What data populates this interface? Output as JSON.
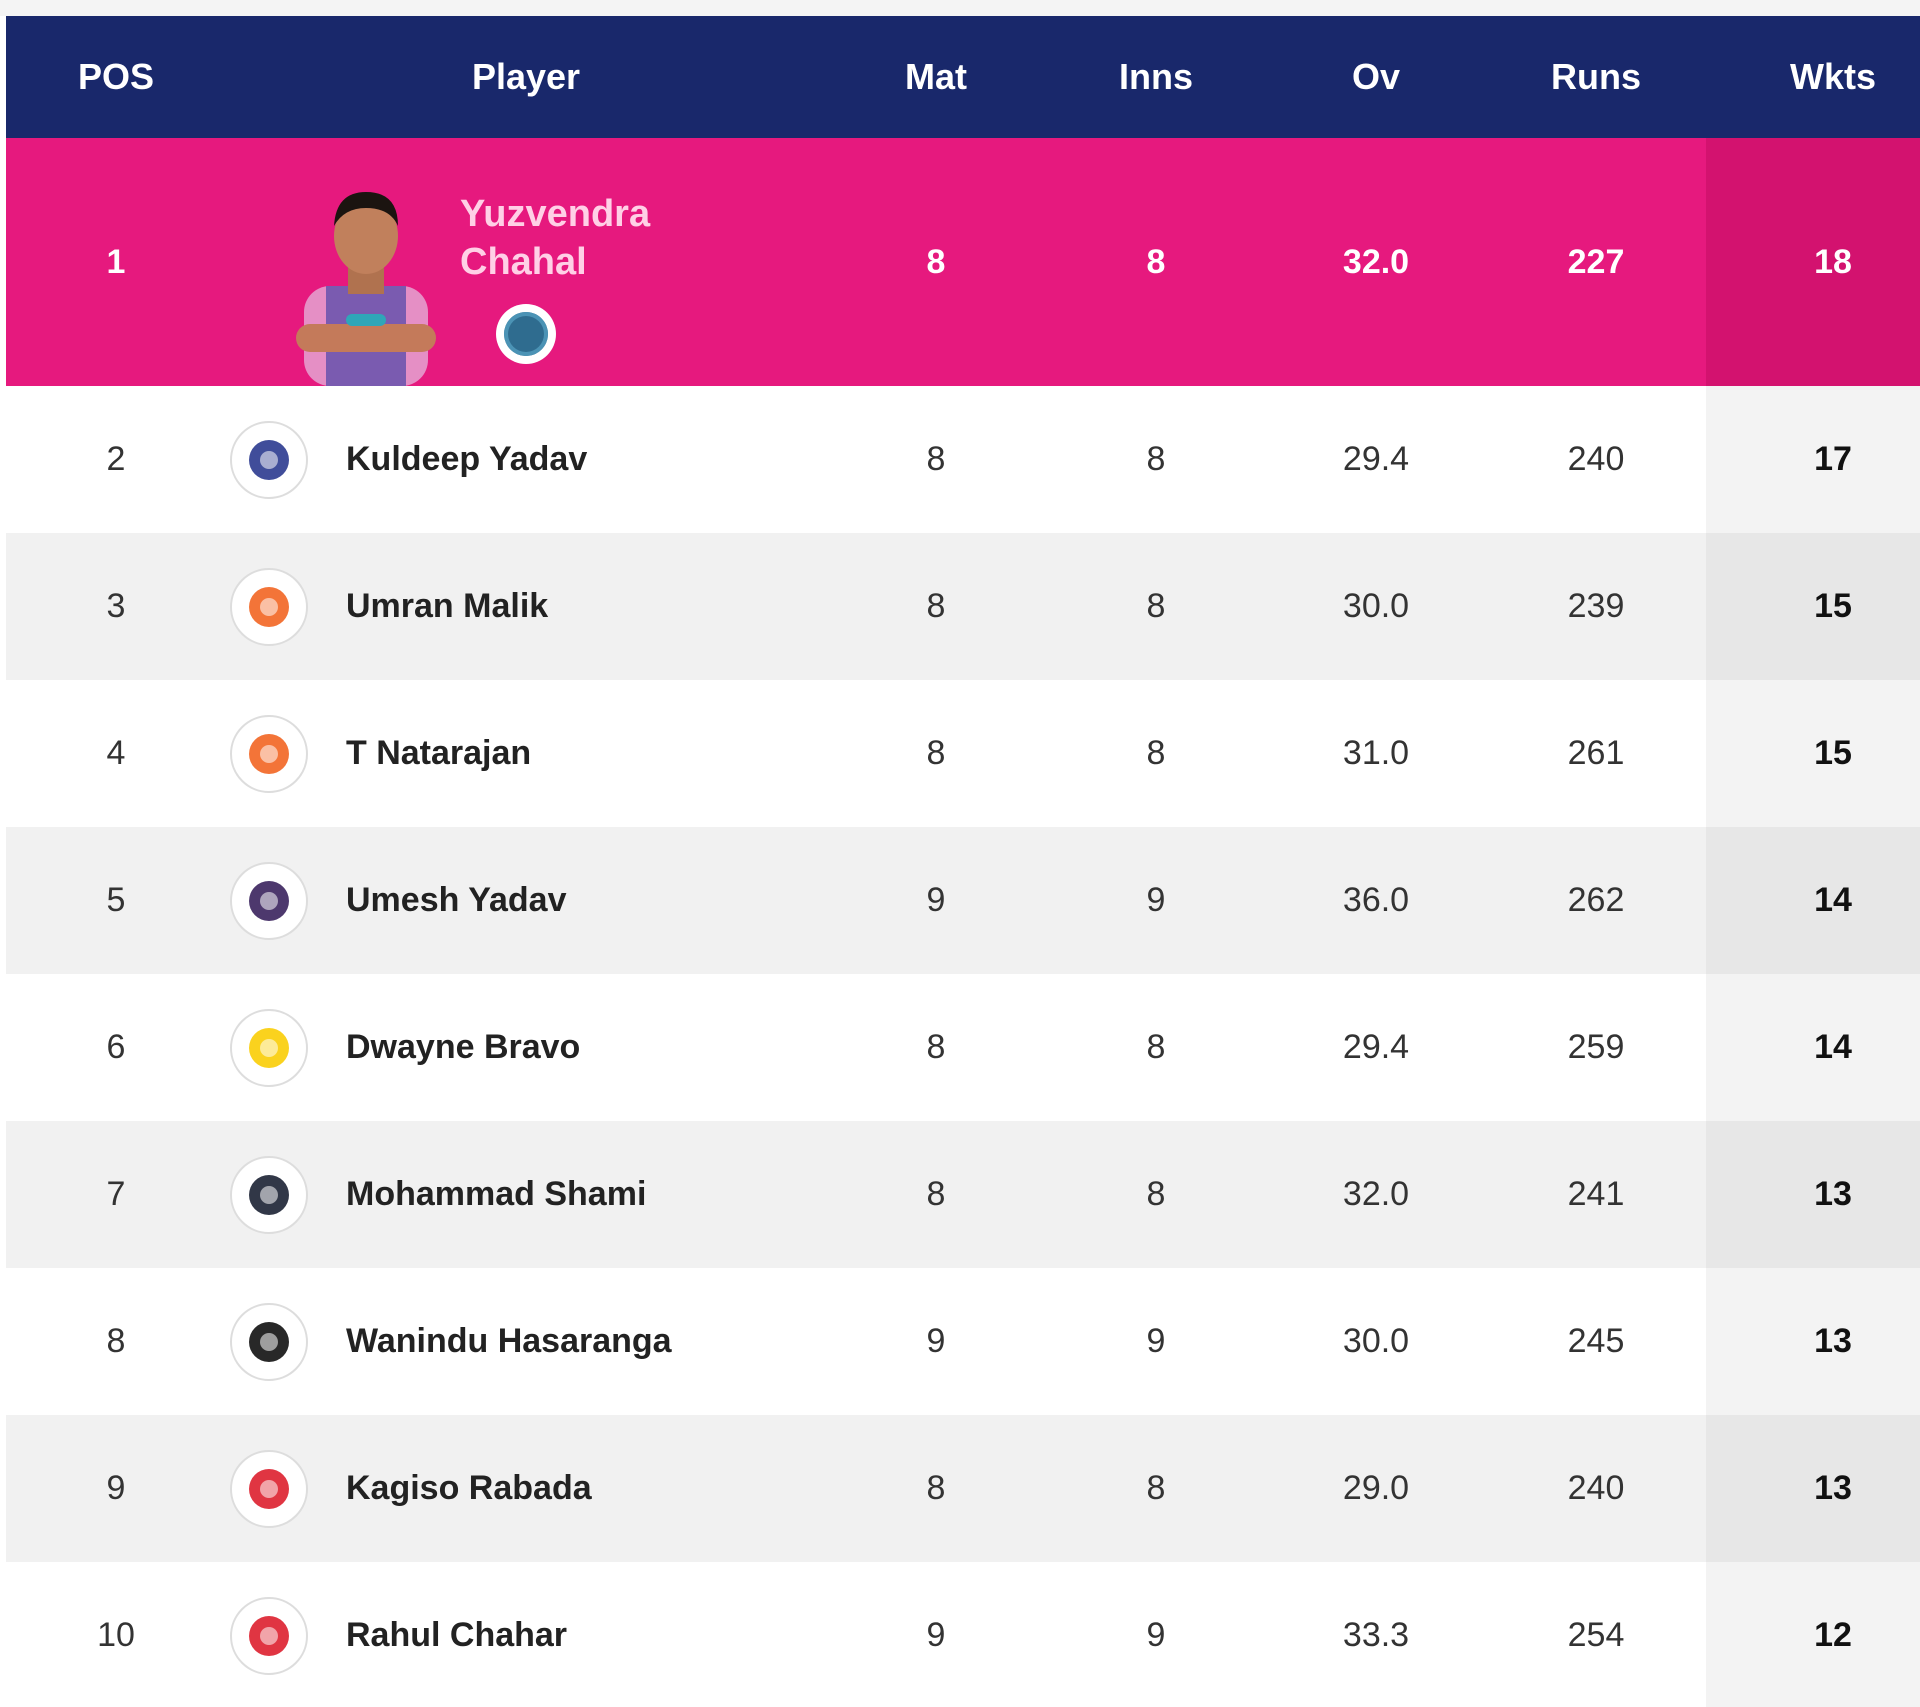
{
  "header": {
    "pos": "POS",
    "player": "Player",
    "mat": "Mat",
    "inns": "Inns",
    "ov": "Ov",
    "runs": "Runs",
    "wkts": "Wkts"
  },
  "leader": {
    "pos": "1",
    "name": "Yuzvendra Chahal",
    "mat": "8",
    "inns": "8",
    "ov": "32.0",
    "runs": "227",
    "wkts": "18"
  },
  "rows": [
    {
      "pos": "2",
      "name": "Kuldeep Yadav",
      "mat": "8",
      "inns": "8",
      "ov": "29.4",
      "runs": "240",
      "wkts": "17",
      "team_color": "#2b3a8f",
      "icon": "dc-logo-icon"
    },
    {
      "pos": "3",
      "name": "Umran Malik",
      "mat": "8",
      "inns": "8",
      "ov": "30.0",
      "runs": "239",
      "wkts": "15",
      "team_color": "#f26522",
      "icon": "srh-logo-icon"
    },
    {
      "pos": "4",
      "name": "T Natarajan",
      "mat": "8",
      "inns": "8",
      "ov": "31.0",
      "runs": "261",
      "wkts": "15",
      "team_color": "#f26522",
      "icon": "srh-logo-icon"
    },
    {
      "pos": "5",
      "name": "Umesh Yadav",
      "mat": "9",
      "inns": "9",
      "ov": "36.0",
      "runs": "262",
      "wkts": "14",
      "team_color": "#3a225d",
      "icon": "kkr-logo-icon"
    },
    {
      "pos": "6",
      "name": "Dwayne Bravo",
      "mat": "8",
      "inns": "8",
      "ov": "29.4",
      "runs": "259",
      "wkts": "14",
      "team_color": "#f9cd05",
      "icon": "csk-logo-icon"
    },
    {
      "pos": "7",
      "name": "Mohammad Shami",
      "mat": "8",
      "inns": "8",
      "ov": "32.0",
      "runs": "241",
      "wkts": "13",
      "team_color": "#1b2133",
      "icon": "gt-logo-icon"
    },
    {
      "pos": "8",
      "name": "Wanindu Hasaranga",
      "mat": "9",
      "inns": "9",
      "ov": "30.0",
      "runs": "245",
      "wkts": "13",
      "team_color": "#111111",
      "icon": "rcb-logo-icon"
    },
    {
      "pos": "9",
      "name": "Kagiso Rabada",
      "mat": "8",
      "inns": "8",
      "ov": "29.0",
      "runs": "240",
      "wkts": "13",
      "team_color": "#dd1f2d",
      "icon": "pbks-logo-icon"
    },
    {
      "pos": "10",
      "name": "Rahul Chahar",
      "mat": "9",
      "inns": "9",
      "ov": "33.3",
      "runs": "254",
      "wkts": "12",
      "team_color": "#dd1f2d",
      "icon": "pbks-logo-icon"
    }
  ],
  "colors": {
    "header_bg": "#19286b",
    "leader_bg": "#e6197e"
  }
}
